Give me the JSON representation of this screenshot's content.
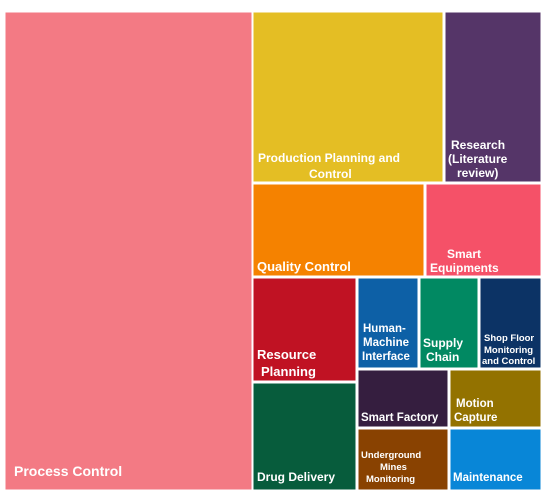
{
  "chart_data": {
    "type": "treemap",
    "title": "",
    "cells": [
      {
        "label": "Process Control",
        "color": "#F37A84"
      },
      {
        "label": "Production Planning and Control",
        "color": "#E4BE24"
      },
      {
        "label": "Research (Literature review)",
        "color": "#553568"
      },
      {
        "label": "Quality Control",
        "color": "#F58200"
      },
      {
        "label": "Smart Equipments",
        "color": "#F55168"
      },
      {
        "label": "Resource Planning",
        "color": "#C01223"
      },
      {
        "label": "Human-Machine Interface",
        "color": "#0D60A6"
      },
      {
        "label": "Supply Chain",
        "color": "#018962"
      },
      {
        "label": "Shop Floor Monitoring and Control",
        "color": "#0C3365"
      },
      {
        "label": "Smart Factory",
        "color": "#351E3F"
      },
      {
        "label": "Motion Capture",
        "color": "#937200"
      },
      {
        "label": "Drug Delivery",
        "color": "#075C3C"
      },
      {
        "label": "Underground Mines Monitoring",
        "color": "#894201"
      },
      {
        "label": "Maintenance",
        "color": "#0886D7"
      }
    ]
  }
}
